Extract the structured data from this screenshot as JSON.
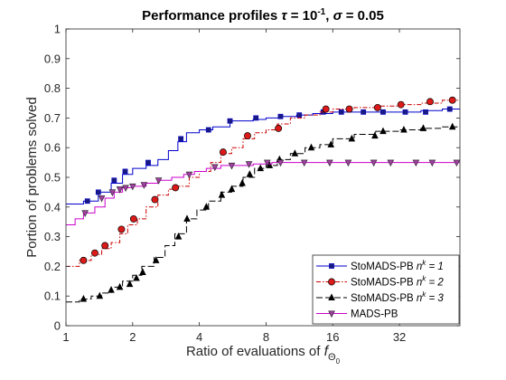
{
  "chart_data": {
    "type": "line",
    "title": {
      "prefix": "Performance profiles ",
      "tau_symbol": "τ",
      "tau_eq": " = 10",
      "tau_exp": "-1",
      "sep": ", ",
      "sigma_symbol": "σ",
      "sigma_eq": " = 0.05"
    },
    "xlabel": {
      "text": "Ratio of evaluations of ",
      "symbol": "f",
      "subscript": "Θ",
      "subscript_sub": "0"
    },
    "ylabel": "Portion of problems solved",
    "x_scale": "log2",
    "xlim": [
      1,
      60
    ],
    "ylim": [
      0,
      1
    ],
    "x_ticks": [
      1,
      2,
      4,
      8,
      16,
      32
    ],
    "x_tick_labels": [
      "1",
      "2",
      "4",
      "8",
      "16",
      "32"
    ],
    "y_ticks": [
      0,
      0.1,
      0.2,
      0.3,
      0.4,
      0.5,
      0.6,
      0.7,
      0.8,
      0.9,
      1
    ],
    "y_tick_labels": [
      "0",
      "0.1",
      "0.2",
      "0.3",
      "0.4",
      "0.5",
      "0.6",
      "0.7",
      "0.8",
      "0.9",
      "1"
    ],
    "grid": false,
    "legend_position": "bottom-right",
    "series": [
      {
        "label_base": "StoMADS-PB ",
        "label_var": "n",
        "label_sup": "k",
        "label_eq": " = 1",
        "color": "#0000cc",
        "dash": "solid",
        "marker": "square",
        "marker_fill": "#1a1a80",
        "x": [
          1,
          1.2,
          1.4,
          1.6,
          1.8,
          2.0,
          2.3,
          2.6,
          2.9,
          3.2,
          3.5,
          4.0,
          4.6,
          5.5,
          6.3,
          7.0,
          8.0,
          9.3,
          11,
          13,
          16,
          20,
          25,
          32,
          40,
          50,
          60
        ],
        "y": [
          0.41,
          0.42,
          0.45,
          0.48,
          0.51,
          0.53,
          0.54,
          0.56,
          0.59,
          0.62,
          0.65,
          0.66,
          0.67,
          0.69,
          0.69,
          0.695,
          0.7,
          0.705,
          0.71,
          0.715,
          0.72,
          0.72,
          0.72,
          0.72,
          0.725,
          0.73,
          0.73
        ],
        "marker_x": [
          1.25,
          1.4,
          1.65,
          1.85,
          2.35,
          3.3,
          4.4,
          5.5,
          7.2,
          9.3,
          11.3,
          14.5,
          17.5,
          22,
          27,
          34,
          42,
          54
        ],
        "marker_y": [
          0.42,
          0.45,
          0.49,
          0.52,
          0.55,
          0.63,
          0.66,
          0.69,
          0.7,
          0.705,
          0.71,
          0.72,
          0.72,
          0.72,
          0.72,
          0.72,
          0.72,
          0.73
        ]
      },
      {
        "label_base": "StoMADS-PB ",
        "label_var": "n",
        "label_sup": "k",
        "label_eq": " = 2",
        "color": "#cc0000",
        "dash": "dashdot",
        "marker": "circle",
        "marker_fill": "#dd1a1a",
        "x": [
          1,
          1.15,
          1.3,
          1.45,
          1.6,
          1.75,
          1.9,
          2.1,
          2.3,
          2.6,
          2.9,
          3.2,
          3.6,
          4.0,
          4.5,
          5.0,
          5.6,
          6.3,
          7.1,
          8.0,
          9.0,
          10.3,
          12,
          14,
          16,
          20,
          25,
          32,
          40,
          50,
          60
        ],
        "y": [
          0.2,
          0.22,
          0.24,
          0.26,
          0.28,
          0.31,
          0.34,
          0.36,
          0.4,
          0.44,
          0.46,
          0.47,
          0.5,
          0.52,
          0.55,
          0.58,
          0.6,
          0.63,
          0.65,
          0.66,
          0.68,
          0.7,
          0.71,
          0.72,
          0.73,
          0.735,
          0.74,
          0.745,
          0.75,
          0.76,
          0.76
        ],
        "marker_x": [
          1.2,
          1.35,
          1.5,
          1.78,
          2.02,
          2.52,
          3.12,
          5.12,
          6.6,
          9.1,
          14.9,
          19.0,
          25.5,
          32.5,
          44,
          55.5
        ],
        "marker_y": [
          0.22,
          0.245,
          0.27,
          0.325,
          0.36,
          0.425,
          0.465,
          0.585,
          0.64,
          0.665,
          0.73,
          0.73,
          0.735,
          0.745,
          0.755,
          0.76
        ]
      },
      {
        "label_base": "StoMADS-PB ",
        "label_var": "n",
        "label_sup": "k",
        "label_eq": " = 3",
        "color": "#000000",
        "dash": "longdash",
        "marker": "triangle",
        "marker_fill": "#000000",
        "x": [
          1,
          1.15,
          1.3,
          1.45,
          1.6,
          1.8,
          2.0,
          2.2,
          2.5,
          2.8,
          3.1,
          3.5,
          3.9,
          4.4,
          5.0,
          5.6,
          6.3,
          7.1,
          8.0,
          9.0,
          10.3,
          12,
          14,
          16,
          20,
          25,
          32,
          40,
          50,
          60
        ],
        "y": [
          0.08,
          0.09,
          0.1,
          0.11,
          0.13,
          0.15,
          0.17,
          0.2,
          0.23,
          0.27,
          0.31,
          0.36,
          0.39,
          0.42,
          0.45,
          0.47,
          0.5,
          0.53,
          0.54,
          0.56,
          0.58,
          0.6,
          0.61,
          0.63,
          0.645,
          0.655,
          0.66,
          0.665,
          0.67,
          0.67
        ],
        "marker_x": [
          1.2,
          1.42,
          1.6,
          1.75,
          1.94,
          2.08,
          2.22,
          2.55,
          3.22,
          3.52,
          4.3,
          5.05,
          5.6,
          6.25,
          6.75,
          7.55,
          8.3,
          9.2,
          10.8,
          12.8,
          15.7,
          19.5,
          24.8,
          27.0,
          33.5,
          41,
          55.5
        ],
        "marker_y": [
          0.09,
          0.1,
          0.12,
          0.13,
          0.14,
          0.16,
          0.18,
          0.22,
          0.3,
          0.36,
          0.4,
          0.44,
          0.46,
          0.48,
          0.51,
          0.53,
          0.54,
          0.56,
          0.58,
          0.6,
          0.61,
          0.63,
          0.64,
          0.655,
          0.66,
          0.665,
          0.67
        ]
      },
      {
        "label_base": "MADS-PB",
        "label_var": "",
        "label_sup": "",
        "label_eq": "",
        "color": "#cc00cc",
        "dash": "solid",
        "marker": "triangle-down",
        "marker_fill": "#a040a0",
        "x": [
          1,
          1.1,
          1.2,
          1.35,
          1.5,
          1.65,
          1.8,
          2.0,
          2.3,
          2.6,
          3.0,
          3.4,
          3.8,
          4.3,
          5.0,
          5.8,
          7.0,
          8.5,
          10,
          13,
          16,
          20,
          25,
          32,
          40,
          50,
          60
        ],
        "y": [
          0.34,
          0.36,
          0.38,
          0.4,
          0.43,
          0.45,
          0.465,
          0.47,
          0.48,
          0.49,
          0.5,
          0.51,
          0.52,
          0.53,
          0.54,
          0.54,
          0.545,
          0.55,
          0.55,
          0.55,
          0.55,
          0.55,
          0.55,
          0.55,
          0.55,
          0.55,
          0.55
        ],
        "marker_x": [
          1.22,
          1.45,
          1.62,
          1.75,
          1.86,
          2.0,
          2.25,
          2.62,
          3.6,
          4.7,
          5.6,
          6.7,
          8.1,
          9.3,
          11.9,
          15.5,
          18.8,
          24.5,
          29.2,
          38,
          45,
          58
        ],
        "marker_y": [
          0.38,
          0.43,
          0.45,
          0.46,
          0.465,
          0.47,
          0.475,
          0.49,
          0.51,
          0.535,
          0.54,
          0.545,
          0.55,
          0.55,
          0.55,
          0.55,
          0.55,
          0.55,
          0.55,
          0.55,
          0.55,
          0.55
        ]
      }
    ]
  }
}
